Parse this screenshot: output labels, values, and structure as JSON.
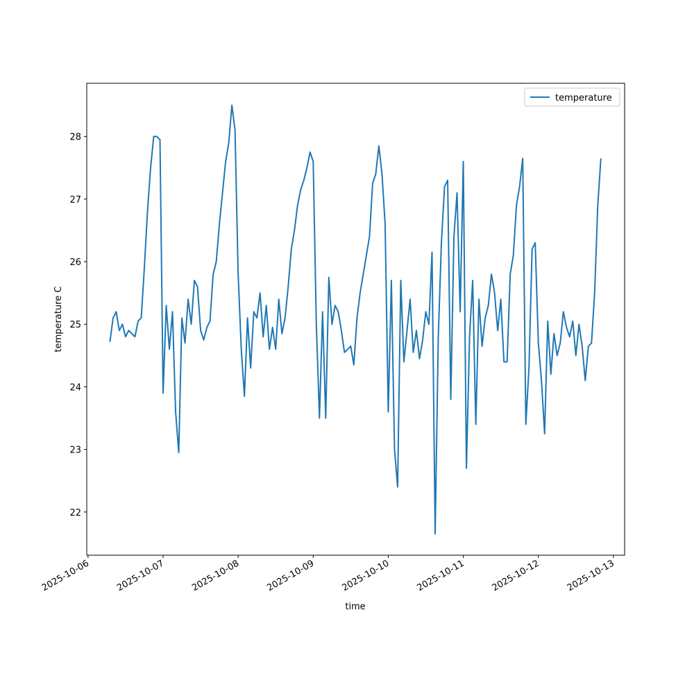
{
  "chart_data": {
    "type": "line",
    "xlabel": "time",
    "ylabel": "temperature C",
    "x": [
      "2025-10-06 07:00",
      "2025-10-06 08:00",
      "2025-10-06 09:00",
      "2025-10-06 10:00",
      "2025-10-06 11:00",
      "2025-10-06 12:00",
      "2025-10-06 13:00",
      "2025-10-06 14:00",
      "2025-10-06 15:00",
      "2025-10-06 16:00",
      "2025-10-06 17:00",
      "2025-10-06 18:00",
      "2025-10-06 19:00",
      "2025-10-06 20:00",
      "2025-10-06 21:00",
      "2025-10-06 22:00",
      "2025-10-06 23:00",
      "2025-10-07 00:00",
      "2025-10-07 01:00",
      "2025-10-07 02:00",
      "2025-10-07 03:00",
      "2025-10-07 04:00",
      "2025-10-07 05:00",
      "2025-10-07 06:00",
      "2025-10-07 07:00",
      "2025-10-07 08:00",
      "2025-10-07 09:00",
      "2025-10-07 10:00",
      "2025-10-07 11:00",
      "2025-10-07 12:00",
      "2025-10-07 13:00",
      "2025-10-07 14:00",
      "2025-10-07 15:00",
      "2025-10-07 16:00",
      "2025-10-07 17:00",
      "2025-10-07 18:00",
      "2025-10-07 19:00",
      "2025-10-07 20:00",
      "2025-10-07 21:00",
      "2025-10-07 22:00",
      "2025-10-07 23:00",
      "2025-10-08 00:00",
      "2025-10-08 01:00",
      "2025-10-08 02:00",
      "2025-10-08 03:00",
      "2025-10-08 04:00",
      "2025-10-08 05:00",
      "2025-10-08 06:00",
      "2025-10-08 07:00",
      "2025-10-08 08:00",
      "2025-10-08 09:00",
      "2025-10-08 10:00",
      "2025-10-08 11:00",
      "2025-10-08 12:00",
      "2025-10-08 13:00",
      "2025-10-08 14:00",
      "2025-10-08 15:00",
      "2025-10-08 16:00",
      "2025-10-08 17:00",
      "2025-10-08 18:00",
      "2025-10-08 19:00",
      "2025-10-08 20:00",
      "2025-10-08 21:00",
      "2025-10-08 22:00",
      "2025-10-08 23:00",
      "2025-10-09 00:00",
      "2025-10-09 01:00",
      "2025-10-09 02:00",
      "2025-10-09 03:00",
      "2025-10-09 04:00",
      "2025-10-09 05:00",
      "2025-10-09 06:00",
      "2025-10-09 07:00",
      "2025-10-09 08:00",
      "2025-10-09 09:00",
      "2025-10-09 10:00",
      "2025-10-09 11:00",
      "2025-10-09 12:00",
      "2025-10-09 13:00",
      "2025-10-09 14:00",
      "2025-10-09 15:00",
      "2025-10-09 16:00",
      "2025-10-09 17:00",
      "2025-10-09 18:00",
      "2025-10-09 19:00",
      "2025-10-09 20:00",
      "2025-10-09 21:00",
      "2025-10-09 22:00",
      "2025-10-09 23:00",
      "2025-10-10 00:00",
      "2025-10-10 01:00",
      "2025-10-10 02:00",
      "2025-10-10 03:00",
      "2025-10-10 04:00",
      "2025-10-10 05:00",
      "2025-10-10 06:00",
      "2025-10-10 07:00",
      "2025-10-10 08:00",
      "2025-10-10 09:00",
      "2025-10-10 10:00",
      "2025-10-10 11:00",
      "2025-10-10 12:00",
      "2025-10-10 13:00",
      "2025-10-10 14:00",
      "2025-10-10 15:00",
      "2025-10-10 16:00",
      "2025-10-10 17:00",
      "2025-10-10 18:00",
      "2025-10-10 19:00",
      "2025-10-10 20:00",
      "2025-10-10 21:00",
      "2025-10-10 22:00",
      "2025-10-10 23:00",
      "2025-10-11 00:00",
      "2025-10-11 01:00",
      "2025-10-11 02:00",
      "2025-10-11 03:00",
      "2025-10-11 04:00",
      "2025-10-11 05:00",
      "2025-10-11 06:00",
      "2025-10-11 07:00",
      "2025-10-11 08:00",
      "2025-10-11 09:00",
      "2025-10-11 10:00",
      "2025-10-11 11:00",
      "2025-10-11 12:00",
      "2025-10-11 13:00",
      "2025-10-11 14:00",
      "2025-10-11 15:00",
      "2025-10-11 16:00",
      "2025-10-11 17:00",
      "2025-10-11 18:00",
      "2025-10-11 19:00",
      "2025-10-11 20:00",
      "2025-10-11 21:00",
      "2025-10-11 22:00",
      "2025-10-11 23:00",
      "2025-10-12 00:00",
      "2025-10-12 01:00",
      "2025-10-12 02:00",
      "2025-10-12 03:00",
      "2025-10-12 04:00",
      "2025-10-12 05:00",
      "2025-10-12 06:00",
      "2025-10-12 07:00",
      "2025-10-12 08:00",
      "2025-10-12 09:00",
      "2025-10-12 10:00",
      "2025-10-12 11:00",
      "2025-10-12 12:00",
      "2025-10-12 13:00",
      "2025-10-12 14:00",
      "2025-10-12 15:00",
      "2025-10-12 16:00",
      "2025-10-12 17:00",
      "2025-10-12 18:00",
      "2025-10-12 19:00",
      "2025-10-12 20:00"
    ],
    "series": [
      {
        "name": "temperature",
        "color": "#1f77b4",
        "values": [
          24.72,
          25.1,
          25.2,
          24.9,
          25.0,
          24.8,
          24.9,
          24.85,
          24.8,
          25.05,
          25.1,
          25.9,
          26.8,
          27.5,
          28.0,
          28.0,
          27.95,
          23.9,
          25.3,
          24.6,
          25.2,
          23.6,
          22.95,
          25.1,
          24.7,
          25.4,
          25.0,
          25.7,
          25.6,
          24.9,
          24.75,
          24.95,
          25.05,
          25.8,
          26.0,
          26.6,
          27.1,
          27.6,
          27.9,
          28.5,
          28.1,
          25.8,
          24.6,
          23.85,
          25.1,
          24.3,
          25.2,
          25.1,
          25.5,
          24.8,
          25.3,
          24.6,
          24.95,
          24.6,
          25.4,
          24.85,
          25.1,
          25.6,
          26.2,
          26.5,
          26.9,
          27.15,
          27.3,
          27.5,
          27.75,
          27.6,
          25.0,
          23.5,
          25.2,
          23.5,
          25.75,
          25.0,
          25.3,
          25.2,
          24.9,
          24.55,
          24.6,
          24.65,
          24.35,
          25.1,
          25.5,
          25.8,
          26.1,
          26.4,
          27.25,
          27.4,
          27.85,
          27.4,
          26.6,
          23.6,
          25.7,
          23.0,
          22.4,
          25.7,
          24.4,
          24.9,
          25.4,
          24.55,
          24.9,
          24.45,
          24.75,
          25.2,
          25.0,
          26.15,
          21.65,
          24.8,
          26.3,
          27.2,
          27.3,
          23.8,
          26.4,
          27.1,
          25.2,
          27.6,
          22.7,
          24.8,
          25.7,
          23.4,
          25.4,
          24.65,
          25.1,
          25.3,
          25.8,
          25.5,
          24.9,
          25.4,
          24.4,
          24.4,
          25.8,
          26.1,
          26.9,
          27.2,
          27.65,
          23.4,
          24.3,
          26.2,
          26.3,
          24.7,
          24.1,
          23.25,
          25.05,
          24.2,
          24.85,
          24.5,
          24.7,
          25.2,
          24.95,
          24.8,
          25.05,
          24.5,
          25.0,
          24.65,
          24.1,
          24.65,
          24.7,
          25.5,
          26.9,
          27.65
        ]
      }
    ],
    "xlim": [
      "2025-10-05 23:35",
      "2025-10-13 03:35"
    ],
    "xticks": [
      "2025-10-06",
      "2025-10-07",
      "2025-10-08",
      "2025-10-09",
      "2025-10-10",
      "2025-10-11",
      "2025-10-12",
      "2025-10-13"
    ],
    "ylim": [
      21.31,
      28.85
    ],
    "yticks": [
      22,
      23,
      24,
      25,
      26,
      27,
      28
    ],
    "legend": "upper right",
    "grid": false
  }
}
